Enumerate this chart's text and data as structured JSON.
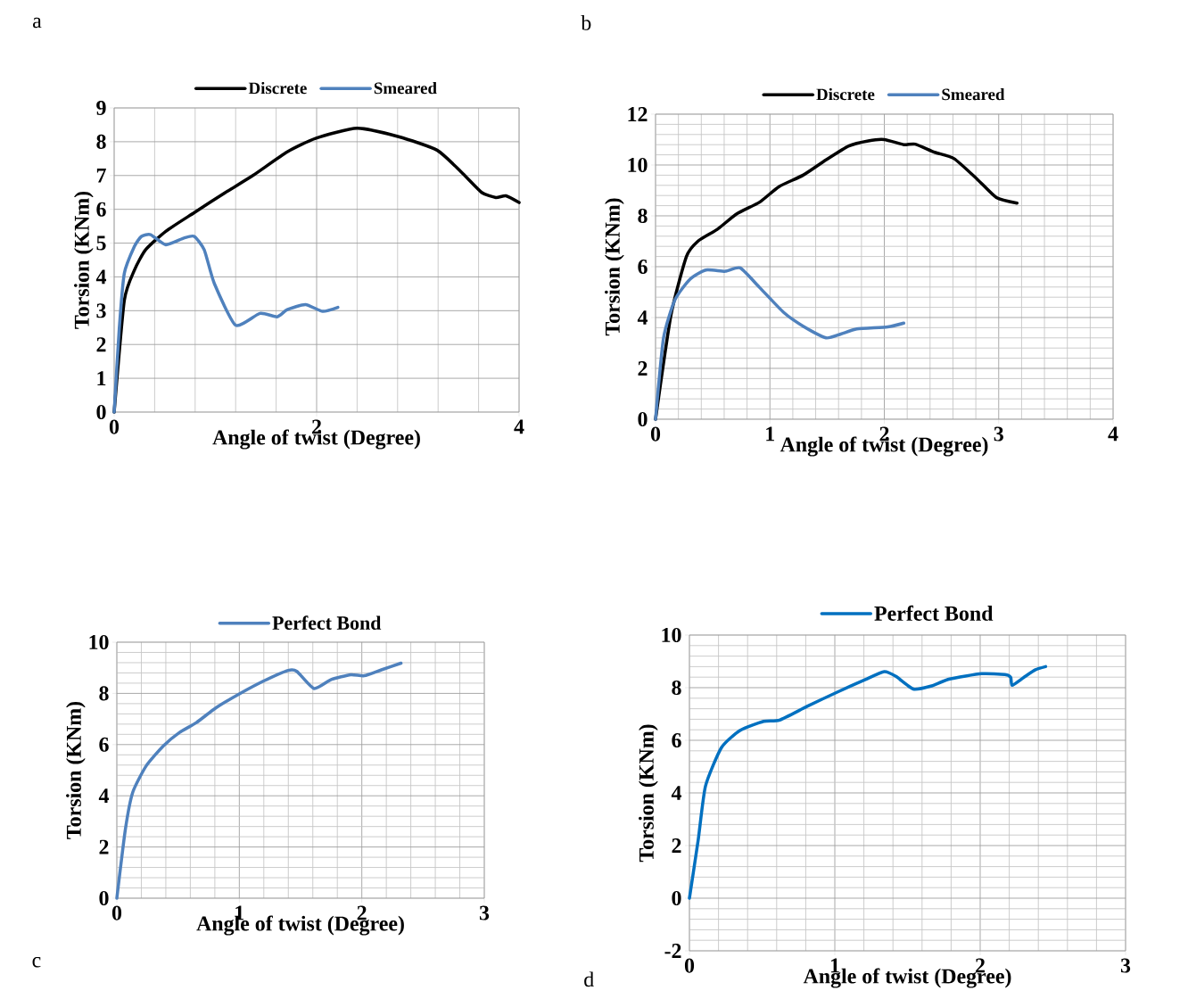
{
  "chart_data": [
    {
      "type": "line",
      "annotations": [
        "a"
      ],
      "xlabel": "Angle of twist (Degree)",
      "ylabel": "Torsion (KNm)",
      "xlim": [
        0,
        4
      ],
      "xticks": [
        0,
        2,
        4
      ],
      "ylim": [
        0,
        9
      ],
      "yticks": [
        0,
        1,
        2,
        3,
        4,
        5,
        6,
        7,
        8,
        9
      ],
      "grid": true,
      "legend": "top",
      "line_style": "solid",
      "marker": "none",
      "series": [
        {
          "name": "Discrete",
          "color": "#000000",
          "x": [
            0,
            0.1,
            0.2,
            0.31,
            0.51,
            0.79,
            1.1,
            1.37,
            1.71,
            1.99,
            2.4,
            2.81,
            3.19,
            3.43,
            3.63,
            3.77,
            3.87,
            4
          ],
          "values": [
            0,
            3.3,
            4.2,
            4.8,
            5.35,
            5.9,
            6.5,
            7.0,
            7.7,
            8.1,
            8.4,
            8.15,
            7.75,
            7.1,
            6.5,
            6.35,
            6.4,
            6.2
          ]
        },
        {
          "name": "Smeared",
          "color": "#4f81bd",
          "x": [
            0,
            0.05,
            0.1,
            0.2,
            0.27,
            0.36,
            0.51,
            0.69,
            0.79,
            0.89,
            0.99,
            1.2,
            1.44,
            1.61,
            1.71,
            1.89,
            2.06,
            2.21
          ],
          "values": [
            0,
            2.45,
            4.1,
            4.9,
            5.2,
            5.25,
            4.95,
            5.15,
            5.2,
            4.8,
            3.8,
            2.57,
            2.92,
            2.82,
            3.03,
            3.18,
            2.98,
            3.1
          ]
        }
      ]
    },
    {
      "type": "line",
      "annotations": [
        "b"
      ],
      "xlabel": "Angle of twist (Degree)",
      "ylabel": "Torsion (KNm)",
      "xlim": [
        0,
        4
      ],
      "xticks": [
        0,
        1,
        2,
        3,
        4
      ],
      "ylim": [
        0,
        12
      ],
      "yticks": [
        0,
        2,
        4,
        6,
        8,
        10,
        12
      ],
      "grid": true,
      "legend": "top",
      "line_style": "solid",
      "marker": "none",
      "series": [
        {
          "name": "Discrete",
          "color": "#000000",
          "x": [
            0,
            0.135,
            0.27,
            0.37,
            0.54,
            0.71,
            0.91,
            1.08,
            1.29,
            1.49,
            1.69,
            1.86,
            2.0,
            2.17,
            2.27,
            2.44,
            2.61,
            2.81,
            2.98,
            3.16
          ],
          "values": [
            0,
            4.1,
            6.4,
            7.0,
            7.47,
            8.08,
            8.54,
            9.15,
            9.6,
            10.2,
            10.75,
            10.95,
            11.0,
            10.8,
            10.82,
            10.5,
            10.25,
            9.45,
            8.72,
            8.5
          ]
        },
        {
          "name": "Smeared",
          "color": "#4f81bd",
          "x": [
            0,
            0.07,
            0.17,
            0.3,
            0.44,
            0.61,
            0.74,
            0.91,
            1.12,
            1.29,
            1.49,
            1.62,
            1.76,
            2.03,
            2.17
          ],
          "values": [
            0,
            3.2,
            4.7,
            5.5,
            5.87,
            5.82,
            5.95,
            5.18,
            4.2,
            3.66,
            3.2,
            3.35,
            3.55,
            3.63,
            3.78
          ]
        }
      ]
    },
    {
      "type": "line",
      "annotations": [
        "c"
      ],
      "xlabel": "Angle of twist (Degree)",
      "ylabel": "Torsion (KNm)",
      "xlim": [
        0,
        3
      ],
      "xticks": [
        0,
        1,
        2,
        3
      ],
      "ylim": [
        0,
        10
      ],
      "yticks": [
        0,
        2,
        4,
        6,
        8,
        10
      ],
      "grid": true,
      "legend": "top",
      "line_style": "solid",
      "marker": "none",
      "series": [
        {
          "name": "Perfect Bond",
          "color": "#4f81bd",
          "x": [
            0,
            0.07,
            0.13,
            0.24,
            0.38,
            0.51,
            0.65,
            0.81,
            1.0,
            1.21,
            1.4,
            1.47,
            1.61,
            1.75,
            1.91,
            2.02,
            2.16,
            2.32
          ],
          "values": [
            0,
            2.7,
            4.14,
            5.17,
            5.95,
            6.47,
            6.86,
            7.44,
            7.98,
            8.51,
            8.9,
            8.86,
            8.19,
            8.54,
            8.73,
            8.69,
            8.92,
            9.18
          ]
        }
      ]
    },
    {
      "type": "line",
      "annotations": [
        "d"
      ],
      "xlabel": "Angle of twist (Degree)",
      "ylabel": "Torsion (KNm)",
      "xlim": [
        0,
        3
      ],
      "xticks": [
        0,
        1,
        2,
        3
      ],
      "ylim": [
        -2,
        10
      ],
      "yticks": [
        -2,
        0,
        2,
        4,
        6,
        8,
        10
      ],
      "grid": true,
      "legend": "top",
      "line_style": "solid",
      "marker": "none",
      "series": [
        {
          "name": "Perfect Bond",
          "color": "#0070c0",
          "x": [
            0,
            0.06,
            0.11,
            0.22,
            0.35,
            0.51,
            0.62,
            0.81,
            1.02,
            1.21,
            1.34,
            1.42,
            1.54,
            1.66,
            1.79,
            2.01,
            2.17,
            2.21,
            2.22,
            2.3,
            2.38,
            2.45
          ],
          "values": [
            0,
            2.2,
            4.25,
            5.72,
            6.38,
            6.72,
            6.77,
            7.29,
            7.84,
            8.31,
            8.61,
            8.43,
            7.95,
            8.06,
            8.33,
            8.53,
            8.5,
            8.39,
            8.09,
            8.39,
            8.68,
            8.8
          ]
        }
      ]
    }
  ]
}
